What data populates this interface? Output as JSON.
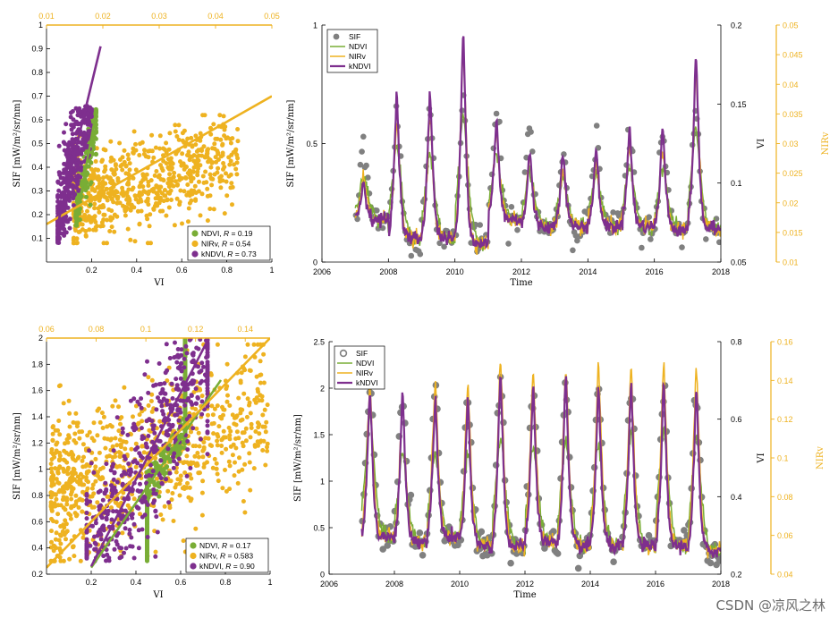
{
  "colors": {
    "ndvi": "#79ad36",
    "nirv": "#eeb220",
    "kndvi": "#7e2f8e",
    "sif": "#808080",
    "axis": "#000000"
  },
  "watermark": "CSDN @凉风之林",
  "chart_data": [
    {
      "id": "top-scatter",
      "type": "scatter",
      "xlabel": "VI",
      "ylabel": "SIF [mW/m$^2$/sr/nm]",
      "ylabel_display": "SIF [mW/m²/sr/nm]",
      "xlim": [
        0,
        1
      ],
      "ylim": [
        0,
        1
      ],
      "xticks": [
        0.2,
        0.4,
        0.6,
        0.8,
        1
      ],
      "xtick_labels": [
        "0.2",
        "0.4",
        "0.6",
        "0.8",
        "1"
      ],
      "yticks": [
        0.1,
        0.2,
        0.3,
        0.4,
        0.5,
        0.6,
        0.7,
        0.8,
        0.9,
        1
      ],
      "ytick_labels": [
        "0.1",
        "0.2",
        "0.3",
        "0.4",
        "0.5",
        "0.6",
        "0.7",
        "0.8",
        "0.9",
        "1"
      ],
      "top_axis": {
        "label": "NIRv",
        "lim": [
          0.01,
          0.05
        ],
        "ticks": [
          0.01,
          0.02,
          0.03,
          0.04,
          0.05
        ],
        "tick_labels": [
          "0.01",
          "0.02",
          "0.03",
          "0.04",
          "0.05"
        ]
      },
      "legend": [
        {
          "name": "NDVI",
          "stat": "R = 0.19",
          "prefix": ", ",
          "var": "R",
          "value": " = 0.19"
        },
        {
          "name": "NIRv",
          "stat": "R = 0.54",
          "prefix": ", ",
          "var": "R",
          "value": " = 0.54"
        },
        {
          "name": "kNDVI",
          "stat": "R = 0.73",
          "prefix": ", ",
          "var": "R",
          "value": " = 0.73"
        }
      ],
      "series": [
        {
          "name": "NDVI",
          "x_range": [
            0.13,
            0.22
          ],
          "y_range": [
            0.15,
            0.65
          ],
          "n": 160,
          "fit": [
            [
              0.13,
              0.17
            ],
            [
              0.21,
              0.58
            ]
          ]
        },
        {
          "name": "NIRv",
          "x_range": [
            0.12,
            0.85
          ],
          "y_range": [
            0.08,
            0.62
          ],
          "n": 700,
          "fit": [
            [
              0.0,
              0.16
            ],
            [
              1.0,
              0.7
            ]
          ]
        },
        {
          "name": "kNDVI",
          "x_range": [
            0.05,
            0.2
          ],
          "y_range": [
            0.08,
            0.66
          ],
          "n": 380,
          "fit": [
            [
              0.05,
              0.16
            ],
            [
              0.24,
              0.91
            ]
          ]
        }
      ]
    },
    {
      "id": "top-timeseries",
      "type": "line",
      "xlabel": "Time",
      "ylabel": "SIF [mW/m$^2$/sr/nm]",
      "ylabel_display": "SIF [mW/m²/sr/nm]",
      "xlim": [
        2006,
        2018
      ],
      "ylim": [
        0,
        1
      ],
      "xticks": [
        2006,
        2008,
        2010,
        2012,
        2014,
        2016,
        2018
      ],
      "xtick_labels": [
        "2006",
        "2008",
        "2010",
        "2012",
        "2014",
        "2016",
        "2018"
      ],
      "yticks": [
        0,
        0.5,
        1
      ],
      "ytick_labels": [
        "0",
        "0.5",
        "1"
      ],
      "right_axis_1": {
        "label": "VI",
        "lim": [
          0.05,
          0.2
        ],
        "ticks": [
          0.05,
          0.1,
          0.15,
          0.2
        ],
        "tick_labels": [
          "0.05",
          "0.1",
          "0.15",
          "0.2"
        ]
      },
      "right_axis_2": {
        "label": "NIRv",
        "lim": [
          0.01,
          0.05
        ],
        "ticks": [
          0.01,
          0.015,
          0.02,
          0.025,
          0.03,
          0.035,
          0.04,
          0.045,
          0.05
        ],
        "tick_labels": [
          "0.01",
          "0.015",
          "0.02",
          "0.025",
          "0.03",
          "0.035",
          "0.04",
          "0.045",
          "0.05"
        ]
      },
      "legend": [
        "SIF",
        "NDVI",
        "NIRv",
        "kNDVI"
      ],
      "time_start": 2007.0,
      "time_end": 2018.0,
      "annual_peaks": {
        "years": [
          2007,
          2008,
          2009,
          2010,
          2011,
          2012,
          2013,
          2014,
          2015,
          2016,
          2017
        ],
        "sif_peak": [
          0.48,
          0.62,
          0.6,
          0.65,
          0.62,
          0.55,
          0.44,
          0.5,
          0.52,
          0.52,
          0.62
        ],
        "ndvi_peak": [
          0.36,
          0.5,
          0.45,
          0.62,
          0.45,
          0.38,
          0.35,
          0.37,
          0.4,
          0.4,
          0.55
        ],
        "nirv_peak": [
          0.35,
          0.6,
          0.6,
          0.9,
          0.55,
          0.45,
          0.38,
          0.42,
          0.48,
          0.48,
          0.8
        ],
        "kndvi_peak": [
          0.34,
          0.72,
          0.73,
          0.97,
          0.6,
          0.47,
          0.48,
          0.48,
          0.57,
          0.57,
          0.88
        ],
        "trough": [
          0.18,
          0.1,
          0.1,
          0.08,
          0.18,
          0.15,
          0.15,
          0.15,
          0.15,
          0.14,
          0.14
        ]
      }
    },
    {
      "id": "bottom-scatter",
      "type": "scatter",
      "xlabel": "VI",
      "ylabel": "SIF [mW/m$^2$/sr/nm]",
      "ylabel_display": "SIF [mW/m²/sr/nm]",
      "xlim": [
        0,
        1
      ],
      "ylim": [
        0.2,
        2
      ],
      "xticks": [
        0.2,
        0.4,
        0.6,
        0.8,
        1
      ],
      "xtick_labels": [
        "0.2",
        "0.4",
        "0.6",
        "0.8",
        "1"
      ],
      "yticks": [
        0.2,
        0.4,
        0.6,
        0.8,
        1,
        1.2,
        1.4,
        1.6,
        1.8,
        2
      ],
      "ytick_labels": [
        "0.2",
        "0.4",
        "0.6",
        "0.8",
        "1",
        "1.2",
        "1.4",
        "1.6",
        "1.8",
        "2"
      ],
      "top_axis": {
        "label": "NIRv",
        "lim": [
          0.06,
          0.15
        ],
        "ticks": [
          0.06,
          0.08,
          0.1,
          0.12,
          0.14
        ],
        "tick_labels": [
          "0.06",
          "0.08",
          "0.1",
          "0.12",
          "0.14"
        ]
      },
      "legend": [
        {
          "name": "NDVI",
          "stat": "R = 0.17",
          "prefix": ", ",
          "var": "R",
          "value": " = 0.17"
        },
        {
          "name": "NIRv",
          "stat": "R = 0.583",
          "prefix": ", ",
          "var": "R",
          "value": " = 0.583"
        },
        {
          "name": "kNDVI",
          "stat": "R = 0.90",
          "prefix": ", ",
          "var": "R",
          "value": " = 0.90"
        }
      ],
      "series": [
        {
          "name": "NDVI",
          "x_range": [
            0.45,
            0.62
          ],
          "y_range": [
            0.3,
            2.0
          ],
          "n": 520,
          "fit": [
            [
              0.2,
              0.25
            ],
            [
              0.78,
              1.68
            ]
          ]
        },
        {
          "name": "NIRv",
          "x_range": [
            0.02,
            0.99
          ],
          "y_range": [
            0.3,
            1.95
          ],
          "n": 820,
          "fit": [
            [
              0.0,
              0.25
            ],
            [
              1.0,
              2.0
            ]
          ]
        },
        {
          "name": "kNDVI",
          "x_range": [
            0.18,
            0.72
          ],
          "y_range": [
            0.3,
            2.0
          ],
          "n": 520,
          "fit": [
            [
              0.2,
              0.26
            ],
            [
              0.72,
              1.98
            ]
          ]
        }
      ]
    },
    {
      "id": "bottom-timeseries",
      "type": "line",
      "xlabel": "Time",
      "ylabel": "SIF [mW/m$^2$/sr/nm]",
      "ylabel_display": "SIF [mW/m²/sr/nm]",
      "xlim": [
        2006,
        2018
      ],
      "ylim": [
        0,
        2.5
      ],
      "xticks": [
        2006,
        2008,
        2010,
        2012,
        2014,
        2016,
        2018
      ],
      "xtick_labels": [
        "2006",
        "2008",
        "2010",
        "2012",
        "2014",
        "2016",
        "2018"
      ],
      "yticks": [
        0,
        0.5,
        1,
        1.5,
        2,
        2.5
      ],
      "ytick_labels": [
        "0",
        "0.5",
        "1",
        "1.5",
        "2",
        "2.5"
      ],
      "right_axis_1": {
        "label": "VI",
        "lim": [
          0.2,
          0.8
        ],
        "ticks": [
          0.2,
          0.4,
          0.6,
          0.8
        ],
        "tick_labels": [
          "0.2",
          "0.4",
          "0.6",
          "0.8"
        ]
      },
      "right_axis_2": {
        "label": "NIRv",
        "lim": [
          0.04,
          0.16
        ],
        "ticks": [
          0.04,
          0.06,
          0.08,
          0.1,
          0.12,
          0.14,
          0.16
        ],
        "tick_labels": [
          "0.04",
          "0.06",
          "0.08",
          "0.1",
          "0.12",
          "0.14",
          "0.16"
        ]
      },
      "legend": [
        "SIF",
        "NDVI",
        "NIRv",
        "kNDVI"
      ],
      "time_start": 2007.0,
      "time_end": 2018.0,
      "annual_peaks": {
        "years": [
          2007,
          2008,
          2009,
          2010,
          2011,
          2012,
          2013,
          2014,
          2015,
          2016,
          2017
        ],
        "sif_peak": [
          2.0,
          1.95,
          1.95,
          1.9,
          2.0,
          1.95,
          2.0,
          1.95,
          1.95,
          1.95,
          1.85
        ],
        "ndvi_peak": [
          1.7,
          1.3,
          1.3,
          1.3,
          1.5,
          1.4,
          1.45,
          1.4,
          1.5,
          1.55,
          1.5
        ],
        "nirv_peak": [
          2.05,
          1.85,
          2.05,
          2.05,
          2.3,
          2.2,
          2.25,
          2.25,
          2.25,
          2.25,
          2.2
        ],
        "kndvi_peak": [
          2.0,
          1.95,
          1.9,
          1.9,
          2.2,
          2.05,
          2.15,
          2.05,
          2.05,
          2.05,
          2.0
        ],
        "trough": [
          0.4,
          0.35,
          0.4,
          0.3,
          0.3,
          0.35,
          0.3,
          0.3,
          0.3,
          0.3,
          0.25
        ]
      }
    }
  ]
}
